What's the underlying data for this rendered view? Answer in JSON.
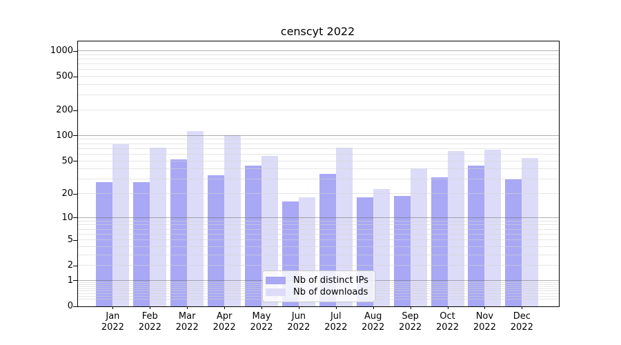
{
  "title": "censcyt 2022",
  "colors": {
    "distinct_ips": "#a8a8f4",
    "downloads": "#dcdcf8",
    "spine": "#000000",
    "major_grid": "#afafaf",
    "minor_grid": "#e4e4e4",
    "legend_border": "#cccccc"
  },
  "legend": {
    "items": [
      {
        "label": "Nb of distinct IPs",
        "swatch": "distinct_ips"
      },
      {
        "label": "Nb of downloads",
        "swatch": "downloads"
      }
    ]
  },
  "y_axis": {
    "ticks": [
      {
        "label": "1000",
        "value": 1000
      },
      {
        "label": "500",
        "value": 500
      },
      {
        "label": "200",
        "value": 200
      },
      {
        "label": "100",
        "value": 100
      },
      {
        "label": "50",
        "value": 50
      },
      {
        "label": "20",
        "value": 20
      },
      {
        "label": "10",
        "value": 10
      },
      {
        "label": "5",
        "value": 5
      },
      {
        "label": "2",
        "value": 2
      },
      {
        "label": "1",
        "value": 1
      },
      {
        "label": "0",
        "value": 0
      }
    ]
  },
  "x_axis": {
    "year": "2022",
    "months": [
      "Jan",
      "Feb",
      "Mar",
      "Apr",
      "May",
      "Jun",
      "Jul",
      "Aug",
      "Sep",
      "Oct",
      "Nov",
      "Dec"
    ]
  },
  "chart_data": {
    "type": "bar",
    "title": "censcyt 2022",
    "categories": [
      "Jan 2022",
      "Feb 2022",
      "Mar 2022",
      "Apr 2022",
      "May 2022",
      "Jun 2022",
      "Jul 2022",
      "Aug 2022",
      "Sep 2022",
      "Oct 2022",
      "Nov 2022",
      "Dec 2022"
    ],
    "series": [
      {
        "name": "Nb of distinct IPs",
        "color_key": "distinct_ips",
        "values": [
          28,
          28,
          52,
          34,
          44,
          16,
          35,
          18,
          19,
          32,
          44,
          30
        ]
      },
      {
        "name": "Nb of downloads",
        "color_key": "downloads",
        "values": [
          80,
          72,
          113,
          102,
          58,
          18,
          72,
          23,
          41,
          66,
          68,
          54
        ]
      }
    ],
    "xlabel": "",
    "ylabel": "",
    "ylim": [
      0,
      1300
    ],
    "yscale": "log10(1+v)",
    "ytick_values": [
      0,
      1,
      2,
      5,
      10,
      20,
      50,
      100,
      200,
      500,
      1000
    ],
    "grid": true,
    "legend_position": "lower center inside"
  }
}
